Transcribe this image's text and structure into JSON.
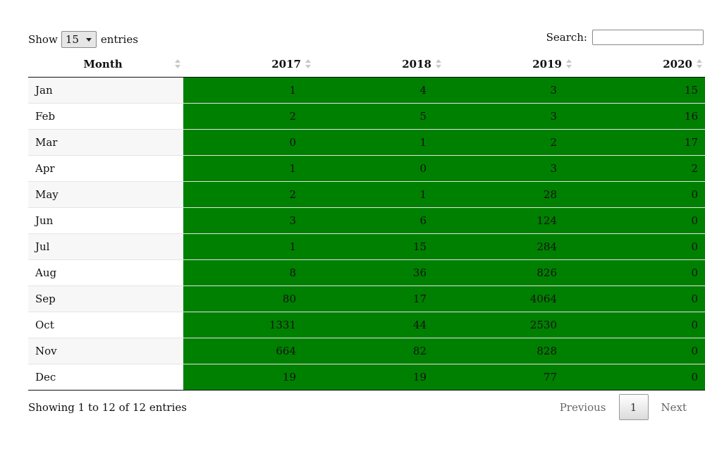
{
  "length_menu": {
    "show_label": "Show",
    "selected": "15",
    "entries_label": "entries"
  },
  "search": {
    "label": "Search:",
    "value": "",
    "placeholder": ""
  },
  "columns": [
    "Month",
    "2017",
    "2018",
    "2019",
    "2020"
  ],
  "rows": [
    {
      "month": "Jan",
      "v2017": "1",
      "v2018": "4",
      "v2019": "3",
      "v2020": "15"
    },
    {
      "month": "Feb",
      "v2017": "2",
      "v2018": "5",
      "v2019": "3",
      "v2020": "16"
    },
    {
      "month": "Mar",
      "v2017": "0",
      "v2018": "1",
      "v2019": "2",
      "v2020": "17"
    },
    {
      "month": "Apr",
      "v2017": "1",
      "v2018": "0",
      "v2019": "3",
      "v2020": "2"
    },
    {
      "month": "May",
      "v2017": "2",
      "v2018": "1",
      "v2019": "28",
      "v2020": "0"
    },
    {
      "month": "Jun",
      "v2017": "3",
      "v2018": "6",
      "v2019": "124",
      "v2020": "0"
    },
    {
      "month": "Jul",
      "v2017": "1",
      "v2018": "15",
      "v2019": "284",
      "v2020": "0"
    },
    {
      "month": "Aug",
      "v2017": "8",
      "v2018": "36",
      "v2019": "826",
      "v2020": "0"
    },
    {
      "month": "Sep",
      "v2017": "80",
      "v2018": "17",
      "v2019": "4064",
      "v2020": "0"
    },
    {
      "month": "Oct",
      "v2017": "1331",
      "v2018": "44",
      "v2019": "2530",
      "v2020": "0"
    },
    {
      "month": "Nov",
      "v2017": "664",
      "v2018": "82",
      "v2019": "828",
      "v2020": "0"
    },
    {
      "month": "Dec",
      "v2017": "19",
      "v2018": "19",
      "v2019": "77",
      "v2020": "0"
    }
  ],
  "info": "Showing 1 to 12 of 12 entries",
  "pagination": {
    "previous": "Previous",
    "current_page": "1",
    "next": "Next"
  },
  "colors": {
    "cell_fill": "#008000",
    "stripe": "#f7f7f7"
  }
}
